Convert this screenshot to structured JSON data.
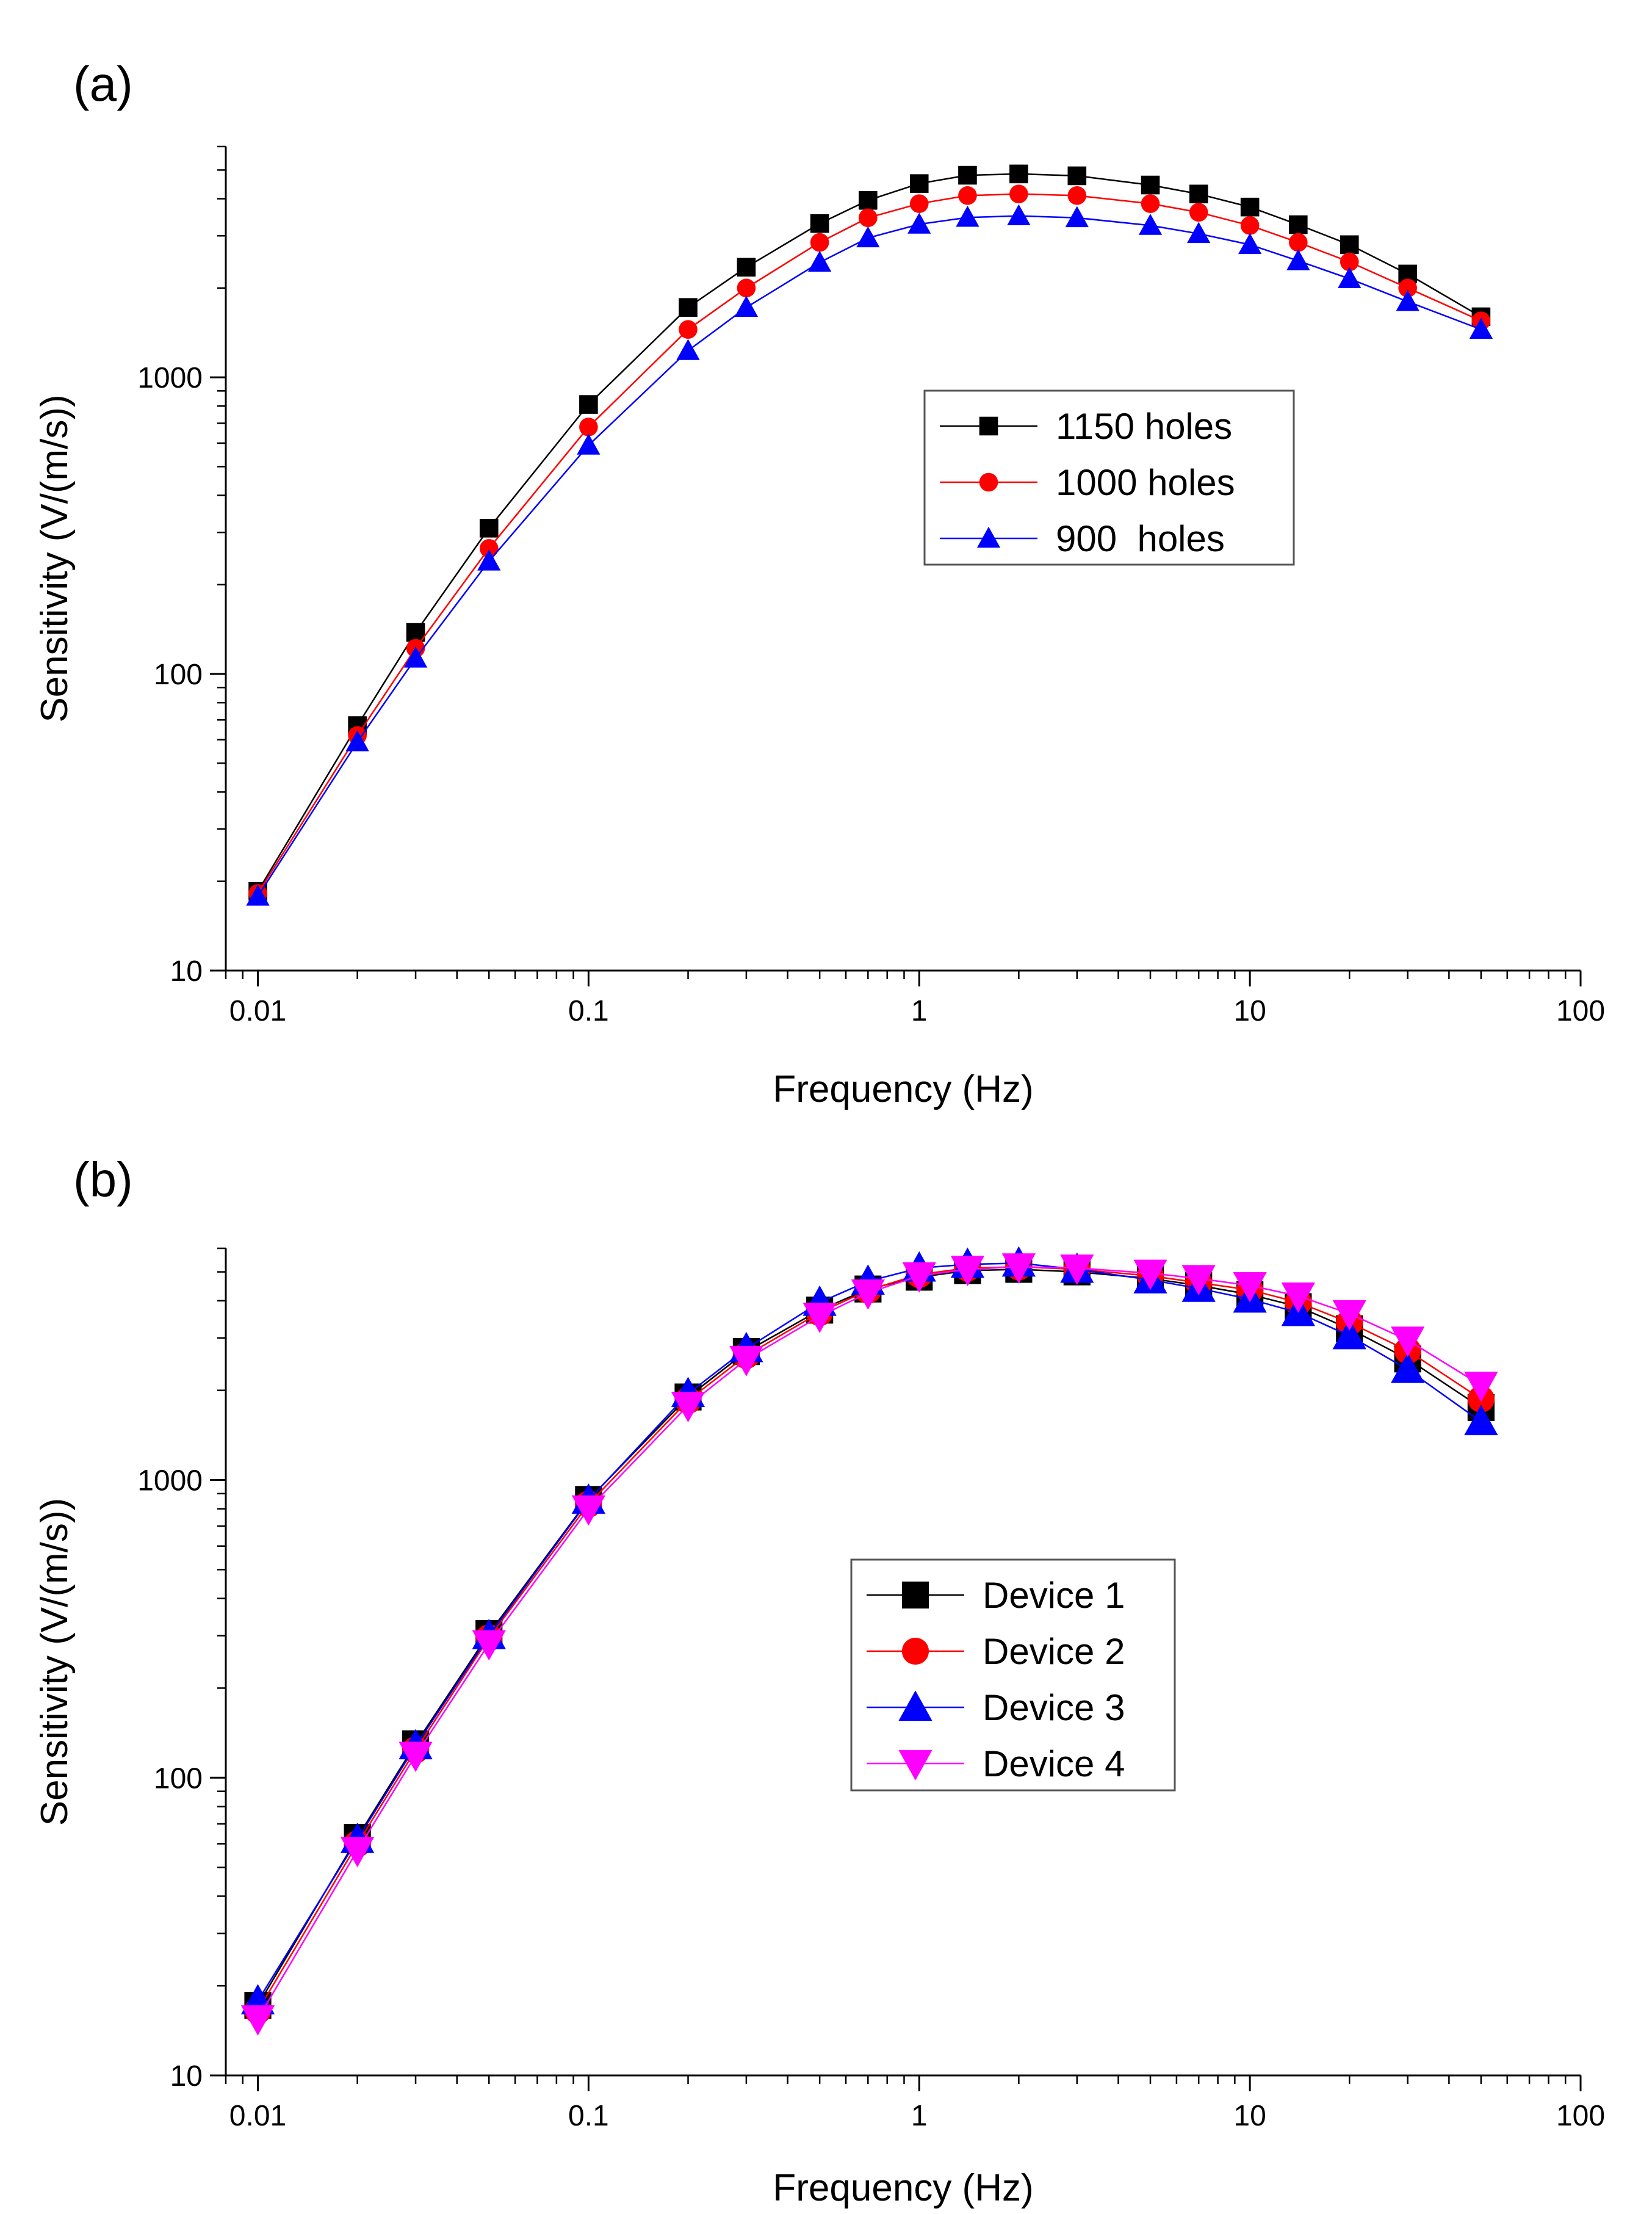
{
  "chart_data": [
    {
      "type": "line",
      "panel_label": "(a)",
      "xscale": "log",
      "yscale": "log",
      "xlabel": "Frequency (Hz)",
      "ylabel": "Sensitivity (V/(m/s))",
      "xlim": [
        0.008,
        100
      ],
      "ylim": [
        10,
        6000
      ],
      "xticks": [
        0.01,
        0.1,
        1,
        10,
        100
      ],
      "xtick_labels": [
        "0.01",
        "0.1",
        "1",
        "10",
        "100"
      ],
      "yticks": [
        10,
        100,
        1000
      ],
      "ytick_labels": [
        "10",
        "100",
        "1000"
      ],
      "legend_position": "center-right",
      "x": [
        0.01,
        0.02,
        0.03,
        0.05,
        0.1,
        0.2,
        0.3,
        0.5,
        0.7,
        1,
        1.4,
        2,
        3,
        5,
        7,
        10,
        14,
        20,
        30,
        50
      ],
      "series": [
        {
          "name": "1150 holes",
          "color": "#000000",
          "marker": "square",
          "values": [
            18.5,
            67,
            138,
            310,
            810,
            1720,
            2350,
            3300,
            3950,
            4500,
            4800,
            4850,
            4780,
            4450,
            4150,
            3750,
            3270,
            2800,
            2230,
            1600
          ]
        },
        {
          "name": "1000 holes",
          "color": "#ff0000",
          "marker": "circle",
          "values": [
            18.2,
            62,
            122,
            265,
            680,
            1450,
            2000,
            2850,
            3450,
            3850,
            4100,
            4150,
            4100,
            3850,
            3600,
            3250,
            2850,
            2450,
            2000,
            1550
          ]
        },
        {
          "name": "900  holes",
          "color": "#0000ff",
          "marker": "triangle-up",
          "values": [
            17.8,
            59,
            113,
            240,
            590,
            1230,
            1720,
            2440,
            2950,
            3280,
            3460,
            3500,
            3450,
            3250,
            3050,
            2800,
            2470,
            2150,
            1800,
            1450
          ]
        }
      ]
    },
    {
      "type": "line",
      "panel_label": "(b)",
      "xscale": "log",
      "yscale": "log",
      "xlabel": "Frequency (Hz)",
      "ylabel": "Sensitivity (V/(m/s))",
      "xlim": [
        0.008,
        100
      ],
      "ylim": [
        10,
        6000
      ],
      "xticks": [
        0.01,
        0.1,
        1,
        10,
        100
      ],
      "xtick_labels": [
        "0.01",
        "0.1",
        "1",
        "10",
        "100"
      ],
      "yticks": [
        10,
        100,
        1000
      ],
      "ytick_labels": [
        "10",
        "100",
        "1000"
      ],
      "legend_position": "center",
      "x": [
        0.01,
        0.02,
        0.03,
        0.05,
        0.1,
        0.2,
        0.3,
        0.5,
        0.7,
        1,
        1.4,
        2,
        3,
        5,
        7,
        10,
        14,
        20,
        30,
        50
      ],
      "series": [
        {
          "name": "Device 1",
          "color": "#000000",
          "marker": "square",
          "values": [
            17.2,
            63,
            130,
            305,
            860,
            1900,
            2700,
            3720,
            4380,
            4800,
            5050,
            5100,
            5000,
            4750,
            4500,
            4200,
            3820,
            3220,
            2550,
            1750
          ]
        },
        {
          "name": "Device 2",
          "color": "#ff0000",
          "marker": "circle",
          "values": [
            16.5,
            60,
            124,
            295,
            830,
            1850,
            2620,
            3650,
            4340,
            4900,
            5150,
            5200,
            5100,
            4850,
            4600,
            4350,
            3950,
            3380,
            2720,
            1870
          ]
        },
        {
          "name": "Device 3",
          "color": "#0000ff",
          "marker": "triangle-up",
          "values": [
            17.8,
            62,
            128,
            300,
            855,
            1950,
            2760,
            3950,
            4650,
            5150,
            5300,
            5350,
            5100,
            4700,
            4400,
            4050,
            3650,
            3050,
            2350,
            1570
          ]
        },
        {
          "name": "Device 4",
          "color": "#ff00ff",
          "marker": "triangle-down",
          "values": [
            15.5,
            57,
            119,
            282,
            800,
            1780,
            2540,
            3550,
            4250,
            4850,
            5100,
            5200,
            5150,
            4950,
            4750,
            4500,
            4150,
            3620,
            2950,
            2080
          ]
        }
      ]
    }
  ]
}
